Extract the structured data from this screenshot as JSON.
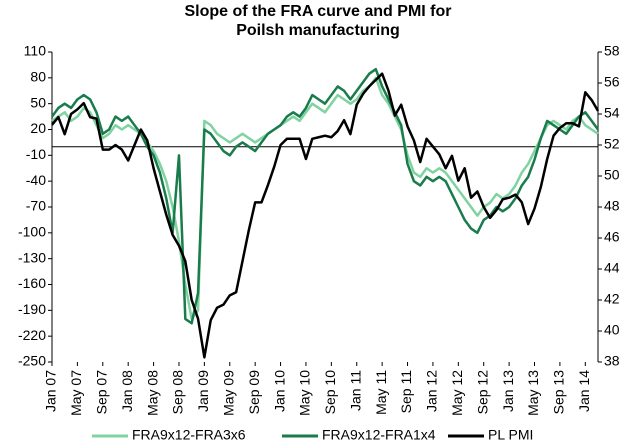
{
  "chart_data": {
    "type": "line",
    "title": "Slope of the FRA curve and PMI for Poilsh manufacturing",
    "categories": [
      "Jan 07",
      null,
      null,
      null,
      "May 07",
      null,
      null,
      null,
      "Sep 07",
      null,
      null,
      null,
      "Jan 08",
      null,
      null,
      null,
      "May 08",
      null,
      null,
      null,
      "Sep 08",
      null,
      null,
      null,
      "Jan 09",
      null,
      null,
      null,
      "May 09",
      null,
      null,
      null,
      "Sep 09",
      null,
      null,
      null,
      "Jan 10",
      null,
      null,
      null,
      "May 10",
      null,
      null,
      null,
      "Sep 10",
      null,
      null,
      null,
      "Jan 11",
      null,
      null,
      null,
      "May 11",
      null,
      null,
      null,
      "Sep 11",
      null,
      null,
      null,
      "Jan 12",
      null,
      null,
      null,
      "May 12",
      null,
      null,
      null,
      "Sep 12",
      null,
      null,
      null,
      "Jan 13",
      null,
      null,
      null,
      "May 13",
      null,
      null,
      null,
      "Sep 13",
      null,
      null,
      null,
      "Jan 14",
      null,
      null
    ],
    "ylim": [
      -250,
      110
    ],
    "yticks": [
      -250,
      -220,
      -190,
      -160,
      -130,
      -100,
      -70,
      -40,
      -10,
      20,
      50,
      80,
      110
    ],
    "y2lim": [
      38,
      58
    ],
    "y2ticks": [
      38,
      40,
      42,
      44,
      46,
      48,
      50,
      52,
      54,
      56,
      58
    ],
    "series": [
      {
        "name": "FRA9x12-FRA3x6",
        "color": "#7fd3a0",
        "values": [
          30,
          35,
          40,
          30,
          35,
          45,
          40,
          25,
          10,
          15,
          25,
          20,
          25,
          20,
          15,
          5,
          -5,
          -20,
          -40,
          -70,
          -110,
          -160,
          -200,
          -190,
          30,
          25,
          15,
          10,
          5,
          10,
          15,
          10,
          5,
          10,
          15,
          20,
          25,
          30,
          35,
          30,
          40,
          50,
          45,
          40,
          50,
          60,
          55,
          50,
          55,
          65,
          70,
          80,
          60,
          50,
          35,
          20,
          -10,
          -30,
          -35,
          -25,
          -30,
          -25,
          -30,
          -40,
          -50,
          -60,
          -70,
          -80,
          -70,
          -65,
          -55,
          -60,
          -55,
          -45,
          -30,
          -20,
          -5,
          10,
          25,
          30,
          25,
          20,
          30,
          35,
          25,
          20,
          15
        ]
      },
      {
        "name": "FRA9x12-FRA1x4",
        "color": "#1a7c4c",
        "values": [
          35,
          45,
          50,
          45,
          55,
          60,
          55,
          40,
          15,
          20,
          35,
          30,
          35,
          25,
          15,
          0,
          -10,
          -30,
          -60,
          -100,
          -10,
          -200,
          -205,
          -170,
          20,
          15,
          5,
          -5,
          -10,
          0,
          5,
          0,
          -5,
          5,
          15,
          20,
          25,
          35,
          40,
          35,
          45,
          60,
          55,
          50,
          60,
          70,
          65,
          55,
          65,
          75,
          85,
          90,
          70,
          55,
          40,
          25,
          -20,
          -40,
          -45,
          -35,
          -40,
          -35,
          -40,
          -55,
          -70,
          -85,
          -95,
          -100,
          -85,
          -80,
          -70,
          -75,
          -70,
          -60,
          -45,
          -35,
          -15,
          10,
          30,
          25,
          20,
          15,
          25,
          35,
          40,
          30,
          20
        ]
      },
      {
        "name": "PL PMI",
        "color": "#000000",
        "axis": "y2",
        "values": [
          53.3,
          53.8,
          52.7,
          54,
          54.3,
          54.7,
          53.8,
          53.7,
          51.7,
          51.7,
          52,
          51.7,
          51,
          52,
          53,
          52.3,
          50.5,
          49,
          47.5,
          46.2,
          45.5,
          44.5,
          42,
          40.8,
          38.3,
          40.7,
          41.5,
          41.7,
          42.3,
          42.5,
          44.5,
          46.5,
          48.3,
          48.3,
          49.4,
          50.6,
          52,
          52.4,
          52.4,
          52.4,
          51.1,
          52.4,
          52.5,
          52.6,
          52.5,
          52.9,
          53.6,
          52.7,
          54.6,
          55.3,
          55.8,
          56.2,
          56.6,
          55.5,
          53.9,
          54.6,
          53.2,
          52.3,
          50.9,
          52.4,
          51.9,
          51.4,
          50.5,
          51.3,
          49.7,
          50.5,
          48.6,
          49,
          48,
          47.3,
          47.8,
          48.5,
          48.6,
          48.8,
          48.3,
          46.9,
          47.9,
          49.3,
          51.1,
          52.6,
          53.1,
          53.4,
          53.4,
          53.2,
          55.4,
          54.9,
          54.2
        ]
      }
    ]
  }
}
